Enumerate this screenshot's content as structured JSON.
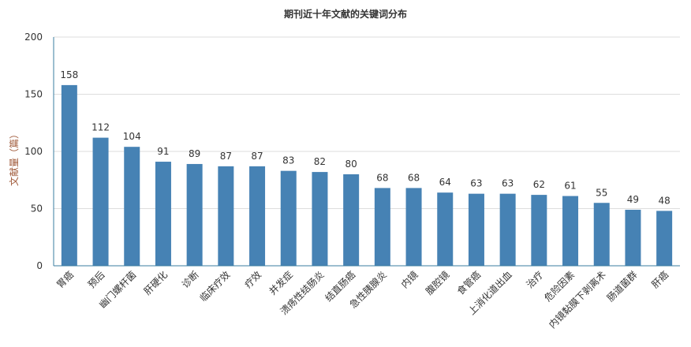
{
  "chart_data": {
    "type": "bar",
    "title": "期刊近十年文献的关键词分布",
    "xlabel": "",
    "ylabel": "文献量（篇）",
    "ylim": [
      0,
      200
    ],
    "yticks": [
      0,
      50,
      100,
      150,
      200
    ],
    "grid": true,
    "legend": "none",
    "bar_color": "#4682b4",
    "categories": [
      "胃癌",
      "预后",
      "幽门螺杆菌",
      "肝硬化",
      "诊断",
      "临床疗效",
      "疗效",
      "并发症",
      "溃疡性结肠炎",
      "结直肠癌",
      "急性胰腺炎",
      "内镜",
      "腹腔镜",
      "食管癌",
      "上消化道出血",
      "治疗",
      "危险因素",
      "内镜黏膜下剥离术",
      "肠道菌群",
      "肝癌"
    ],
    "values": [
      158,
      112,
      104,
      91,
      89,
      87,
      87,
      83,
      82,
      80,
      68,
      68,
      64,
      63,
      63,
      62,
      61,
      55,
      49,
      48
    ]
  }
}
